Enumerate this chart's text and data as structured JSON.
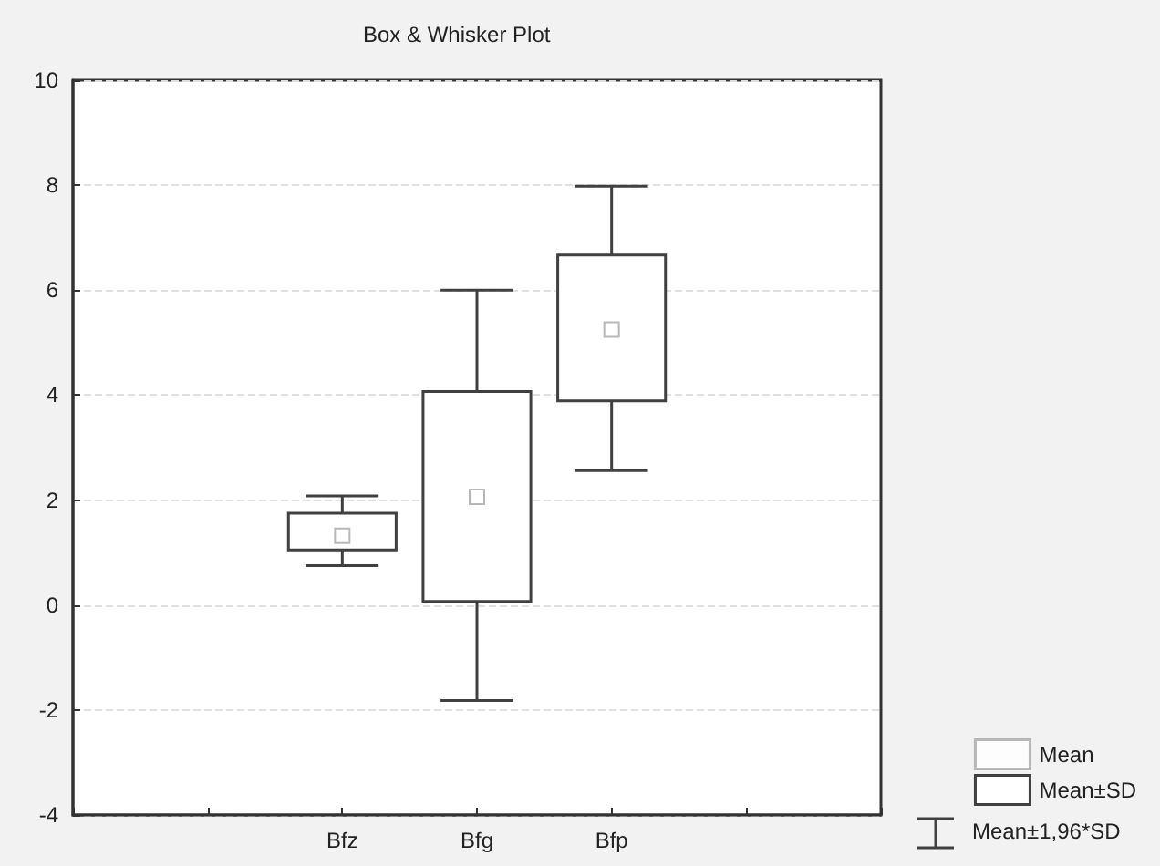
{
  "chart_data": {
    "type": "box",
    "title": "Box & Whisker Plot",
    "categories": [
      null,
      null,
      "Bfz",
      "Bfg",
      "Bfp",
      null,
      null
    ],
    "series": [
      {
        "name": "Mean",
        "type": "scatter",
        "color": "#a6a6a6",
        "marker": "square",
        "x": [
          "Bfz",
          "Bfg",
          "Bfp"
        ],
        "values": [
          1.32,
          2.06,
          5.25
        ]
      },
      {
        "name": "Mean±SD",
        "color": "#404040",
        "boxes": [
          null,
          null,
          {
            "low": 0.75,
            "q1": 1.05,
            "q3": 1.75,
            "high": 2.08
          },
          {
            "low": -1.82,
            "q1": 0.07,
            "q3": 4.07,
            "high": 6.0
          },
          {
            "low": 2.56,
            "q1": 3.89,
            "q3": 6.67,
            "high": 7.98
          },
          null,
          null
        ]
      }
    ],
    "annotations": [
      "Mean±1,96*SD"
    ],
    "ylim": [
      -4,
      10
    ],
    "yticks": [
      -4,
      -2,
      0,
      2,
      4,
      6,
      8,
      10
    ],
    "grid": "y",
    "legend": "bottom right"
  }
}
